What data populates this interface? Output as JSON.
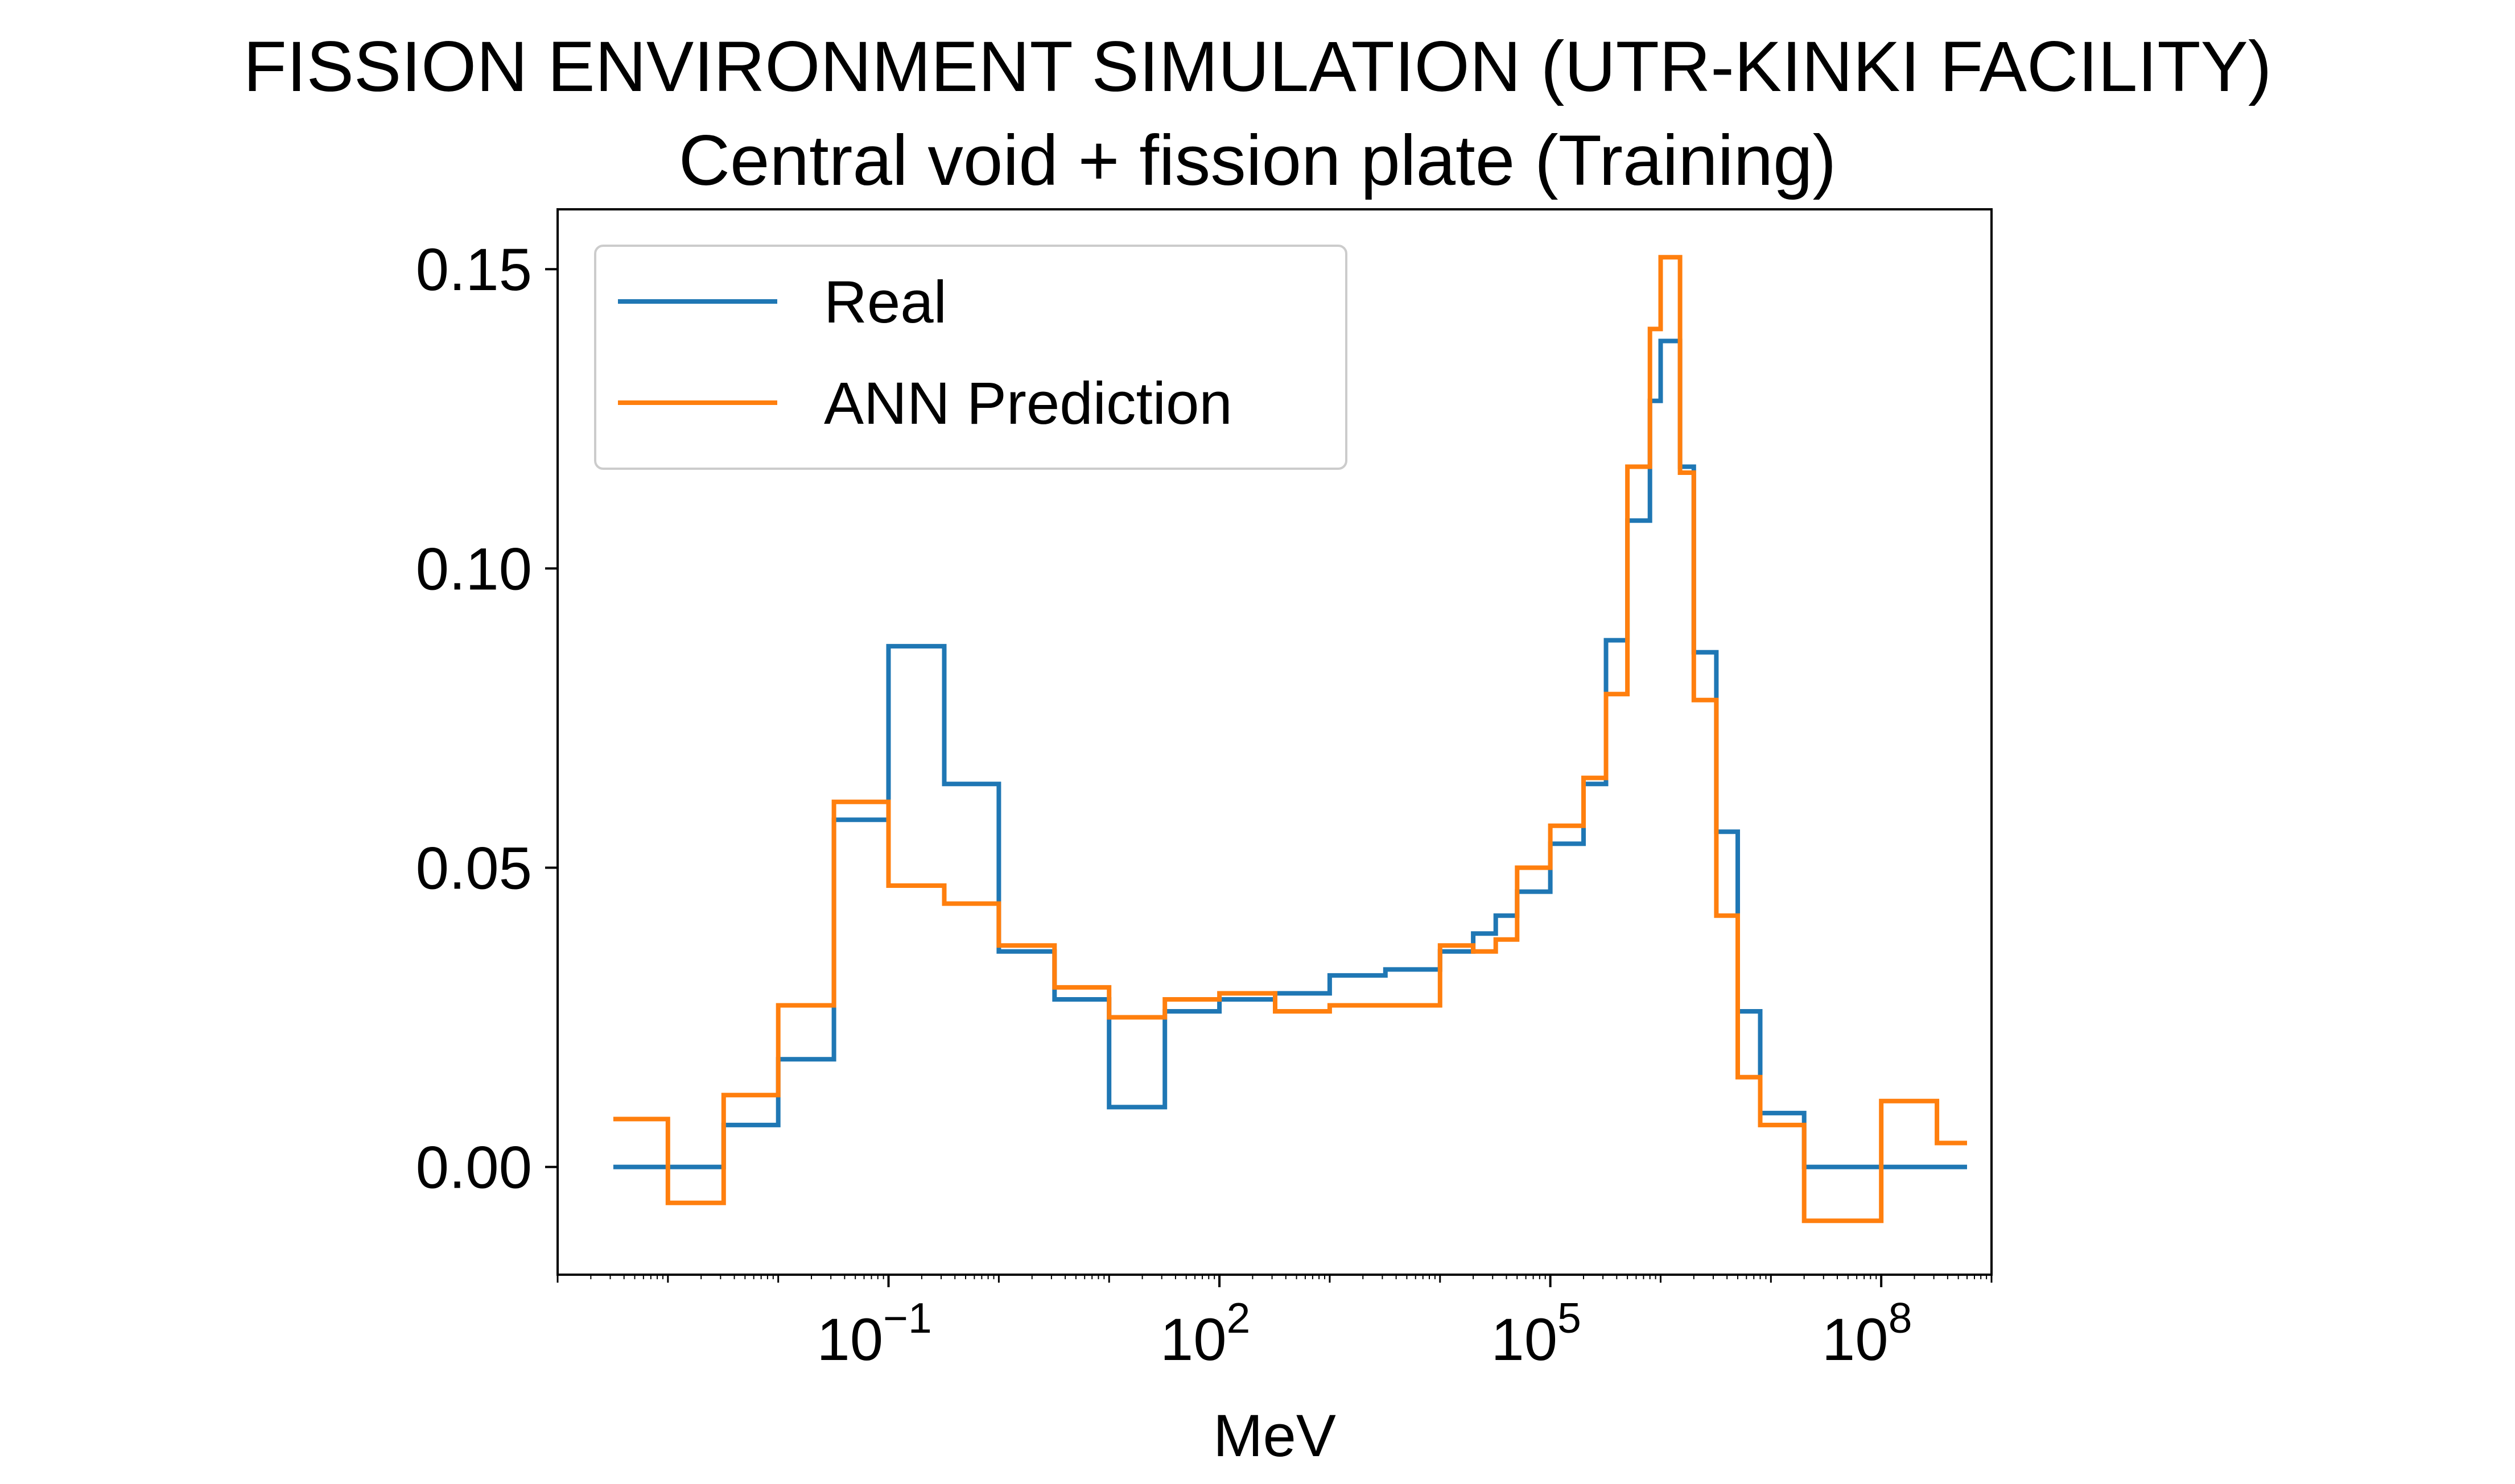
{
  "chart_data": {
    "type": "line",
    "title": "FISSION ENVIRONMENT SIMULATION (UTR-KINKI FACILITY)",
    "subtitle": "Central void + fission plate (Training)",
    "xlabel": "MeV",
    "ylabel": "",
    "xscale": "log",
    "xlim": [
      0.0001,
      1000000000.0
    ],
    "ylim": [
      -0.018,
      0.16
    ],
    "xticks": [
      {
        "value": 0.1,
        "base": "10",
        "exp": "−1"
      },
      {
        "value": 100,
        "base": "10",
        "exp": "2"
      },
      {
        "value": 100000,
        "base": "10",
        "exp": "5"
      },
      {
        "value": 100000000,
        "base": "10",
        "exp": "8"
      }
    ],
    "yticks": [
      {
        "value": 0.0,
        "label": "0.00"
      },
      {
        "value": 0.05,
        "label": "0.05"
      },
      {
        "value": 0.1,
        "label": "0.10"
      },
      {
        "value": 0.15,
        "label": "0.15"
      }
    ],
    "x_edges": [
      0.00032,
      0.001,
      0.0032,
      0.01,
      0.032,
      0.1,
      0.32,
      1,
      3.2,
      10,
      32,
      100,
      320,
      1000,
      3200,
      10000,
      20000,
      32000,
      50000,
      100000,
      200000,
      320000,
      500000,
      800000,
      1000000,
      1500000,
      2000000,
      3200000,
      5000000,
      8000000,
      20000000,
      100000000,
      320000000,
      600000000
    ],
    "series": [
      {
        "name": "Real",
        "color": "#1f77b4",
        "values": [
          0.0,
          0.0,
          0.007,
          0.018,
          0.058,
          0.087,
          0.064,
          0.036,
          0.028,
          0.01,
          0.026,
          0.028,
          0.029,
          0.032,
          0.033,
          0.036,
          0.039,
          0.042,
          0.046,
          0.054,
          0.064,
          0.088,
          0.108,
          0.128,
          0.138,
          0.117,
          0.086,
          0.056,
          0.026,
          0.009,
          0.0,
          0.0,
          0.0
        ]
      },
      {
        "name": "ANN Prediction",
        "color": "#ff7f0e",
        "values": [
          0.008,
          -0.006,
          0.012,
          0.027,
          0.061,
          0.047,
          0.044,
          0.037,
          0.03,
          0.025,
          0.028,
          0.029,
          0.026,
          0.027,
          0.027,
          0.037,
          0.036,
          0.038,
          0.05,
          0.057,
          0.065,
          0.079,
          0.117,
          0.14,
          0.152,
          0.116,
          0.078,
          0.042,
          0.015,
          0.007,
          -0.009,
          0.011,
          0.004
        ]
      }
    ],
    "legend": {
      "placement": "upper-left",
      "entries": [
        "Real",
        "ANN Prediction"
      ]
    }
  }
}
